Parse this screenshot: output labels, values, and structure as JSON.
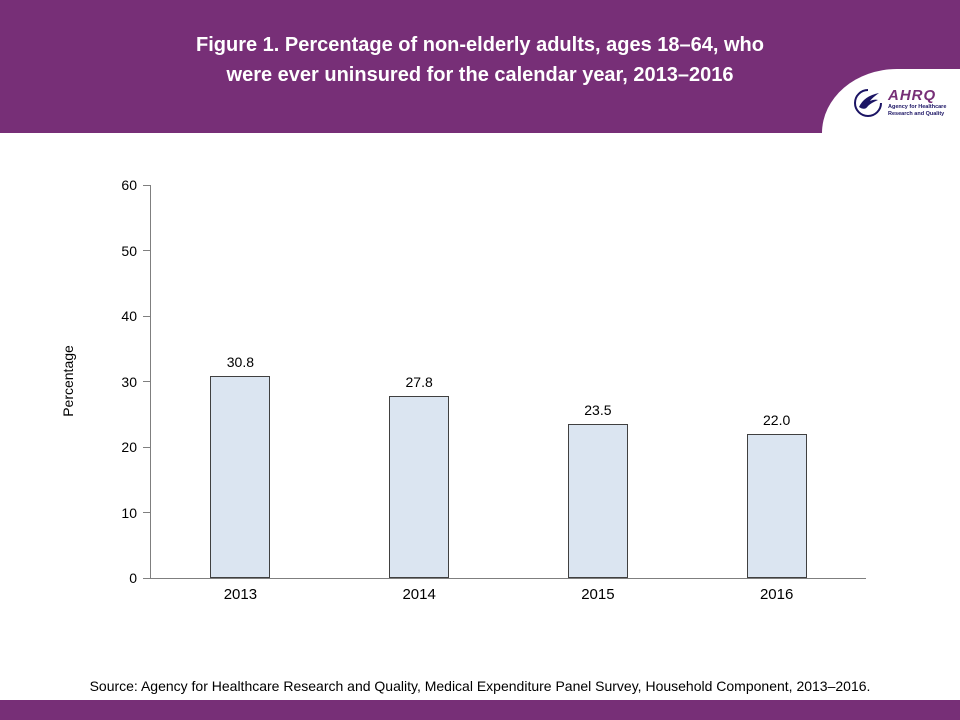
{
  "header": {
    "title_lines": [
      "Figure 1. Percentage of non-elderly adults, ages 18–64, who",
      "were ever uninsured for the calendar year, 2013–2016"
    ],
    "logo": {
      "acronym": "AHRQ",
      "subtitle": "Agency for Healthcare Research and Quality"
    }
  },
  "chart_data": {
    "type": "bar",
    "categories": [
      "2013",
      "2014",
      "2015",
      "2016"
    ],
    "values": [
      30.8,
      27.8,
      23.5,
      22.0
    ],
    "value_labels": [
      "30.8",
      "27.8",
      "23.5",
      "22.0"
    ],
    "title": "Figure 1. Percentage of non-elderly adults, ages 18–64, who were ever uninsured for the calendar year, 2013–2016",
    "xlabel": "",
    "ylabel": "Percentage",
    "ylim": [
      0,
      60
    ],
    "yticks": [
      0,
      10,
      20,
      30,
      40,
      50,
      60
    ],
    "grid": false,
    "legend": false,
    "bar_fill": "#dbe5f1",
    "bar_border": "#404040"
  },
  "footer": {
    "source": "Source: Agency for Healthcare Research and Quality, Medical Expenditure Panel Survey, Household Component, 2013–2016."
  },
  "colors": {
    "brand_purple": "#772f77",
    "logo_blue": "#1b1464"
  }
}
